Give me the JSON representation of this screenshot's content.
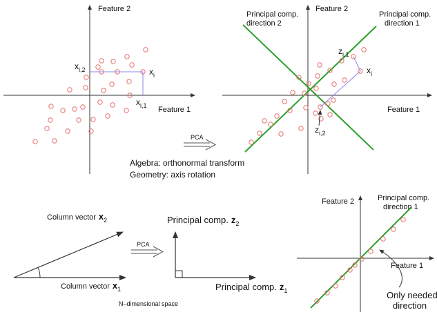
{
  "colors": {
    "axis": "#333333",
    "point": "#e8706e",
    "pc_line": "#2aa02a",
    "projection": "#8888ee",
    "text": "#111111"
  },
  "panel_top_left": {
    "axis_y_label": "Feature 2",
    "axis_x_label": "Feature 1",
    "point_label_x": "x",
    "point_label_sub_i": "i",
    "point_label_xi2_main": "x",
    "point_label_xi2_sub": "i,2",
    "point_label_xi1_main": "x",
    "point_label_xi1_sub": "i,1"
  },
  "panel_top_right": {
    "axis_y_label": "Feature 2",
    "axis_x_label": "Feature 1",
    "pc_direction_1_line1": "Principal comp.",
    "pc_direction_1_line2": "direction 1",
    "pc_direction_2_line1": "Principal comp.",
    "pc_direction_2_line2": "direction 2",
    "point_label_x": "x",
    "point_label_sub_i": "i",
    "z1_main": "z",
    "z1_sub": "i,1",
    "z2_main": "z",
    "z2_sub": "i,2"
  },
  "middle_text": {
    "pca_arrow_label": "PCA",
    "algebra_line": "Algebra: orthonormal transform",
    "geometry_line": "Geometry: axis rotation"
  },
  "panel_bottom_left": {
    "col_vec_2_text": "Column vector",
    "col_vec_2_sym": "x",
    "col_vec_2_sub": "2",
    "col_vec_1_text": "Column vector",
    "col_vec_1_sym": "x",
    "col_vec_1_sub": "1",
    "pca_arrow_label": "PCA",
    "pc2_text": "Principal comp.",
    "pc2_sym": "z",
    "pc2_sub": "2",
    "pc1_text": "Principal comp.",
    "pc1_sym": "z",
    "pc1_sub": "1",
    "space_label": "N–dimensional space"
  },
  "panel_bottom_right": {
    "axis_y_label": "Feature 2",
    "axis_x_label": "Feature 1",
    "pc_direction_1_line1": "Principal comp.",
    "pc_direction_1_line2": "direction 1",
    "only_needed_line1": "Only needed",
    "only_needed_line2": "direction"
  }
}
